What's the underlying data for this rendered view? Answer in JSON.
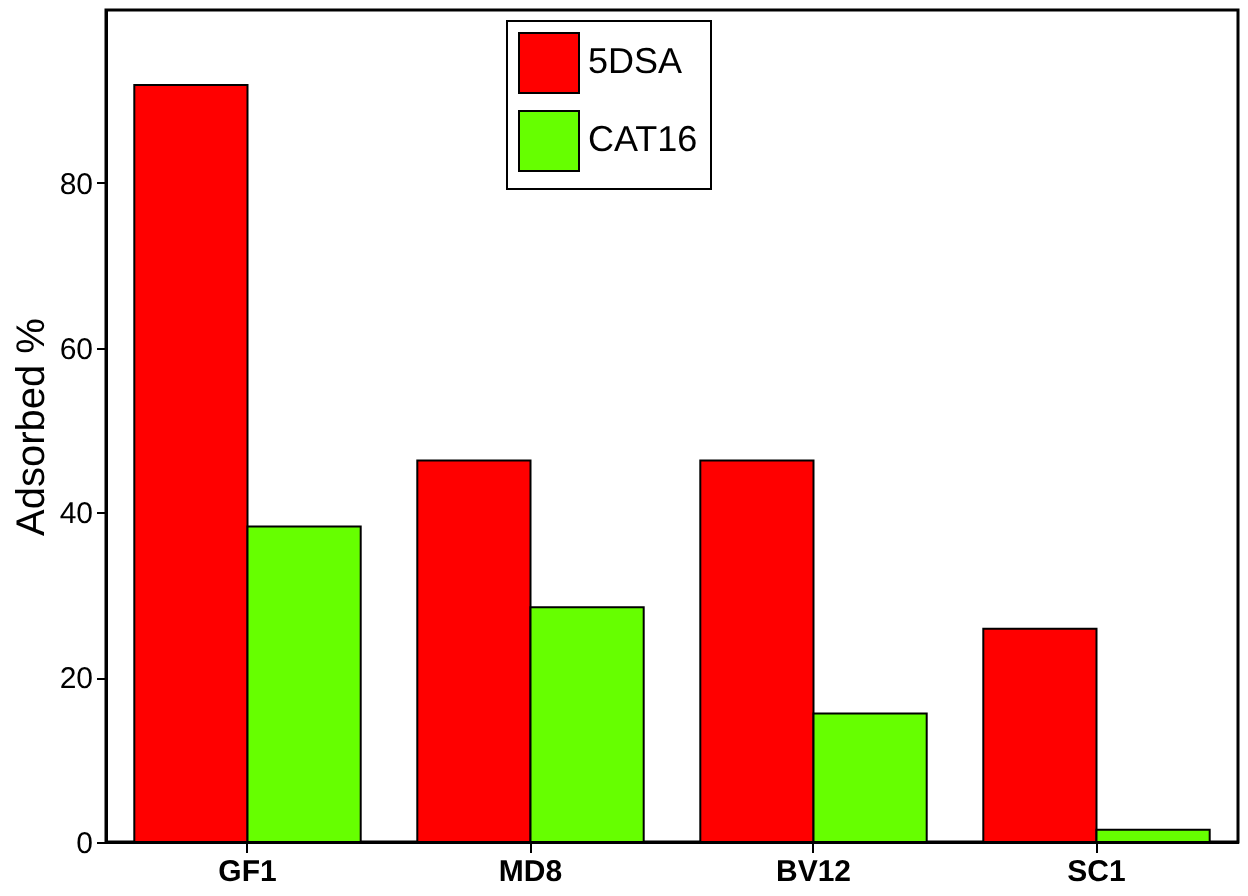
{
  "chart_data": {
    "type": "bar",
    "ylabel": "Adsorbed %",
    "categories": [
      "GF1",
      "MD8",
      "BV12",
      "SC1"
    ],
    "series": [
      {
        "name": "5DSA",
        "color": "#ff0000",
        "values": [
          91.9,
          46.3,
          46.3,
          25.9
        ]
      },
      {
        "name": "CAT16",
        "color": "#66ff00",
        "values": [
          38.3,
          28.5,
          15.6,
          1.5
        ]
      }
    ],
    "ylim": [
      0,
      101
    ],
    "yticks": [
      0,
      20,
      40,
      60,
      80
    ],
    "grid": false,
    "legend": "top"
  }
}
